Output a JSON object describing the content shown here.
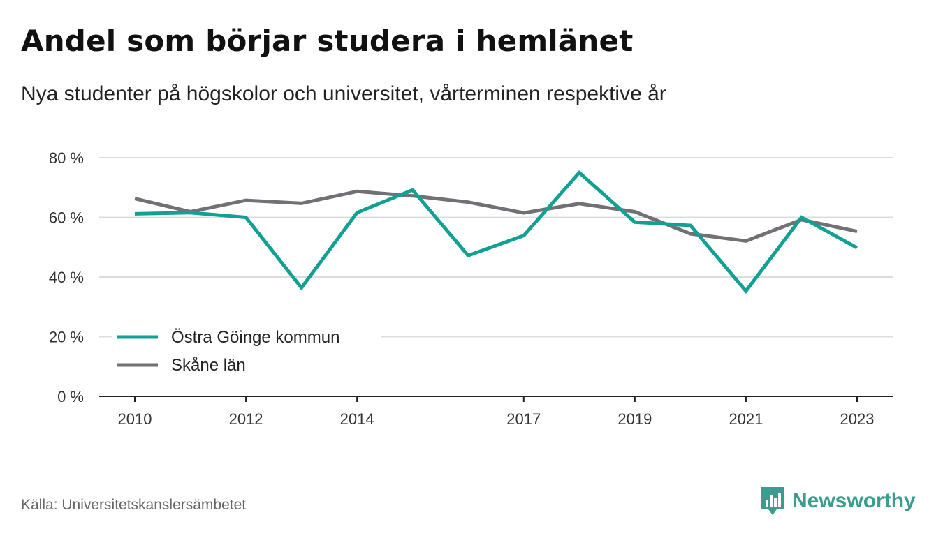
{
  "title": "Andel som börjar studera i hemlänet",
  "subtitle": "Nya studenter på högskolor och universitet, vårterminen respektive år",
  "source": "Källa: Universitetskanslersämbetet",
  "brand": {
    "name": "Newsworthy",
    "icon": "newsworthy-logo-icon",
    "color": "#3a9d8f"
  },
  "chart_data": {
    "type": "line",
    "x": [
      2010,
      2011,
      2012,
      2013,
      2014,
      2015,
      2016,
      2017,
      2018,
      2019,
      2020,
      2021,
      2022,
      2023
    ],
    "x_tick_labels": [
      "2010",
      "2012",
      "2014",
      "2017",
      "2019",
      "2021",
      "2023"
    ],
    "x_tick_values": [
      2010,
      2012,
      2014,
      2017,
      2019,
      2021,
      2023
    ],
    "y_ticks": [
      0,
      20,
      40,
      60,
      80
    ],
    "y_tick_labels": [
      "0 %",
      "20 %",
      "40 %",
      "60 %",
      "80 %"
    ],
    "ylim": [
      0,
      80
    ],
    "grid": true,
    "legend_position": "bottom-left",
    "series": [
      {
        "name": "Östra Göinge kommun",
        "color": "#12a094",
        "values": [
          61.2,
          61.6,
          60.0,
          36.4,
          61.6,
          69.2,
          47.2,
          53.9,
          75.0,
          58.4,
          57.3,
          35.3,
          60.0,
          49.8
        ]
      },
      {
        "name": "Skåne län",
        "color": "#707075",
        "values": [
          66.3,
          61.9,
          65.7,
          64.7,
          68.7,
          67.2,
          65.1,
          61.5,
          64.6,
          61.9,
          54.5,
          52.1,
          59.2,
          55.3
        ]
      }
    ]
  }
}
